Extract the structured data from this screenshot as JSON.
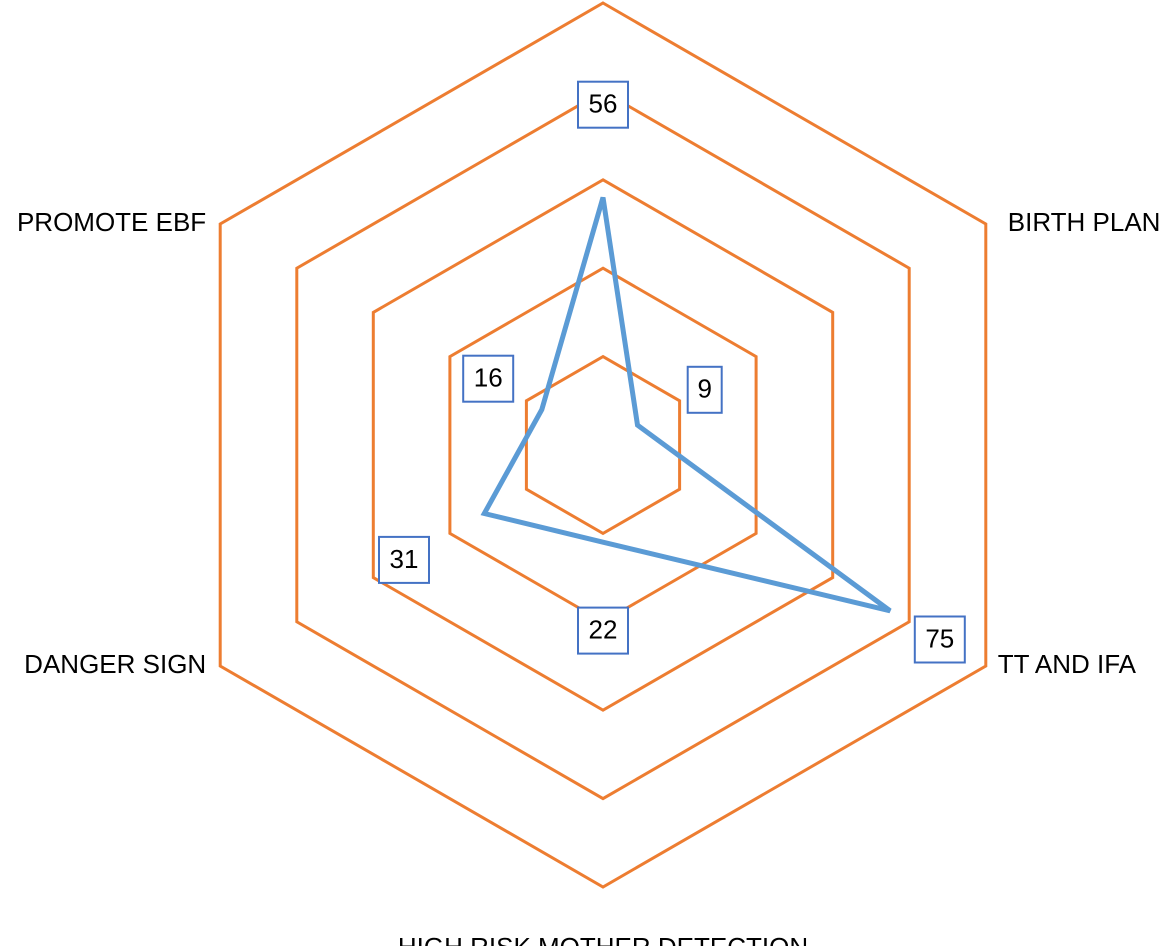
{
  "chart_data": {
    "type": "radar",
    "categories": [
      "",
      "BIRTH PLAN",
      "TT AND IFA",
      "HIGH RISK MOTHER DETECTION",
      "DANGER SIGN",
      "PROMOTE EBF"
    ],
    "series": [
      {
        "values": [
          56,
          9,
          75,
          22,
          31,
          16
        ]
      }
    ],
    "rlim": [
      0,
      100
    ],
    "gridlines": [
      20,
      40,
      60,
      80,
      100
    ],
    "legend": "none",
    "colors": {
      "series": "#5B9BD5",
      "grid": "#ED7D31",
      "label_border": "#4472C4"
    }
  }
}
